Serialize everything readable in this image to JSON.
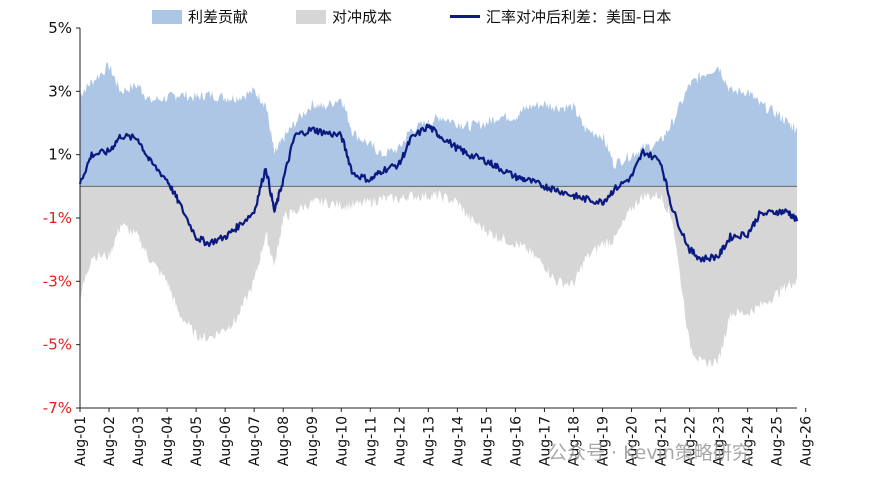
{
  "legend": {
    "contribution": "利差贡献",
    "hedge_cost": "对冲成本",
    "hedged_spread": "汇率对冲后利差：美国-日本"
  },
  "watermark": "公众号 · Kevin策略研究",
  "colors": {
    "contribution": "#adc6e5",
    "hedge_cost": "#d6d6d6",
    "hedged_spread": "#0a1a80",
    "negative_tick": "#e0201b",
    "positive_tick": "#111111"
  },
  "chart_data": {
    "type": "area",
    "ylim": [
      -7,
      5
    ],
    "yticks": [
      "5%",
      "3%",
      "1%",
      "-1%",
      "-3%",
      "-5%",
      "-7%"
    ],
    "ytick_values": [
      5,
      3,
      1,
      -1,
      -3,
      -5,
      -7
    ],
    "xticks": [
      "Aug-01",
      "Aug-02",
      "Aug-03",
      "Aug-04",
      "Aug-05",
      "Aug-06",
      "Aug-07",
      "Aug-08",
      "Aug-09",
      "Aug-10",
      "Aug-11",
      "Aug-12",
      "Aug-13",
      "Aug-14",
      "Aug-15",
      "Aug-16",
      "Aug-17",
      "Aug-18",
      "Aug-19",
      "Aug-20",
      "Aug-21",
      "Aug-22",
      "Aug-23",
      "Aug-24",
      "Aug-25",
      "Aug-26"
    ],
    "x": [
      2001.6,
      2002.0,
      2002.6,
      2003.0,
      2003.6,
      2004.0,
      2004.6,
      2005.0,
      2005.6,
      2006.0,
      2006.6,
      2007.0,
      2007.6,
      2008.0,
      2008.3,
      2008.6,
      2009.0,
      2009.6,
      2010.0,
      2010.6,
      2011.0,
      2011.6,
      2012.0,
      2012.6,
      2013.0,
      2013.6,
      2014.0,
      2014.6,
      2015.0,
      2015.6,
      2016.0,
      2016.6,
      2017.0,
      2017.6,
      2018.0,
      2018.6,
      2019.0,
      2019.6,
      2020.0,
      2020.6,
      2021.0,
      2021.6,
      2022.0,
      2022.6,
      2023.0,
      2023.6,
      2024.0,
      2024.6,
      2025.0,
      2025.6,
      2026.0,
      2026.3
    ],
    "series": [
      {
        "name": "利差贡献",
        "type": "area",
        "values": [
          2.9,
          3.3,
          3.8,
          3.0,
          3.2,
          2.7,
          2.8,
          2.9,
          2.8,
          2.9,
          2.8,
          2.8,
          3.0,
          2.6,
          1.0,
          1.5,
          2.0,
          2.6,
          2.5,
          2.8,
          1.7,
          1.3,
          1.0,
          1.2,
          1.8,
          2.0,
          2.2,
          2.0,
          1.9,
          2.0,
          2.2,
          2.2,
          2.5,
          2.6,
          2.5,
          2.5,
          1.8,
          1.6,
          0.7,
          1.0,
          1.2,
          1.4,
          2.0,
          3.2,
          3.5,
          3.8,
          3.0,
          3.0,
          2.6,
          2.3,
          2.0,
          1.8
        ]
      },
      {
        "name": "对冲成本",
        "type": "area",
        "values": [
          -3.5,
          -2.2,
          -2.2,
          -1.2,
          -1.6,
          -2.3,
          -3.0,
          -4.0,
          -4.7,
          -4.8,
          -4.5,
          -4.2,
          -3.0,
          -1.5,
          -2.5,
          -1.0,
          -0.8,
          -0.5,
          -0.5,
          -0.6,
          -0.6,
          -0.5,
          -0.4,
          -0.4,
          -0.3,
          -0.3,
          -0.3,
          -0.5,
          -1.0,
          -1.4,
          -1.6,
          -1.8,
          -2.0,
          -2.5,
          -3.0,
          -3.1,
          -2.3,
          -1.8,
          -1.7,
          -0.7,
          -0.3,
          -0.3,
          -1.0,
          -5.0,
          -5.6,
          -5.5,
          -4.0,
          -4.0,
          -3.8,
          -3.4,
          -3.1,
          -3.0
        ]
      },
      {
        "name": "汇率对冲后利差：美国-日本",
        "type": "line",
        "values": [
          0.1,
          1.0,
          1.1,
          1.6,
          1.5,
          0.8,
          0.2,
          -0.5,
          -1.6,
          -1.8,
          -1.6,
          -1.3,
          -0.8,
          0.6,
          -0.8,
          0.2,
          1.6,
          1.8,
          1.7,
          1.6,
          0.4,
          0.2,
          0.5,
          0.7,
          1.5,
          1.9,
          1.6,
          1.2,
          1.0,
          0.8,
          0.6,
          0.3,
          0.2,
          0.0,
          -0.1,
          -0.3,
          -0.4,
          -0.5,
          -0.1,
          0.3,
          1.1,
          0.8,
          -0.7,
          -2.0,
          -2.3,
          -2.2,
          -1.6,
          -1.5,
          -0.9,
          -0.8,
          -0.8,
          -1.1
        ]
      }
    ]
  }
}
